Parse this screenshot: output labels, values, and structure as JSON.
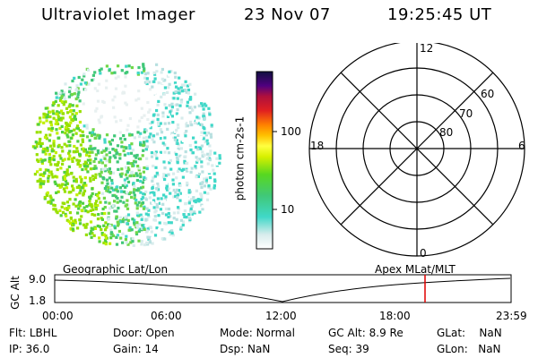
{
  "header": {
    "title": "Ultraviolet Imager",
    "date": "23 Nov 07",
    "time": "19:25:45 UT"
  },
  "colorbar": {
    "label": "photon cm-2s-1",
    "ticks": [
      "100",
      "10"
    ]
  },
  "polar_plot": {
    "mlt_labels": {
      "top": "12",
      "bottom": "0",
      "left": "18",
      "right": "6"
    },
    "lat_labels": [
      "60",
      "70",
      "80"
    ]
  },
  "timeline": {
    "left_title": "Geographic Lat/Lon",
    "right_title": "Apex MLat/MLT",
    "axis_label": "GC Alt",
    "y_ticks": [
      "9.0",
      "1.8"
    ],
    "x_ticks": [
      "00:00",
      "06:00",
      "12:00",
      "18:00",
      "23:59"
    ],
    "current_time_marker": "19:25:45",
    "marker_color": "#e00000"
  },
  "info": {
    "flt": {
      "label": "Flt:",
      "value": "LBHL"
    },
    "ip": {
      "label": "IP:",
      "value": "36.0"
    },
    "door": {
      "label": "Door:",
      "value": "Open"
    },
    "gain": {
      "label": "Gain:",
      "value": "14"
    },
    "mode": {
      "label": "Mode:",
      "value": "Normal"
    },
    "dsp": {
      "label": "Dsp:",
      "value": "NaN"
    },
    "gcalt": {
      "label": "GC Alt:",
      "value": "8.9 Re"
    },
    "seq": {
      "label": "Seq:",
      "value": "39"
    },
    "glat": {
      "label": "GLat:",
      "value": "NaN"
    },
    "glon": {
      "label": "GLon:",
      "value": "NaN"
    }
  }
}
